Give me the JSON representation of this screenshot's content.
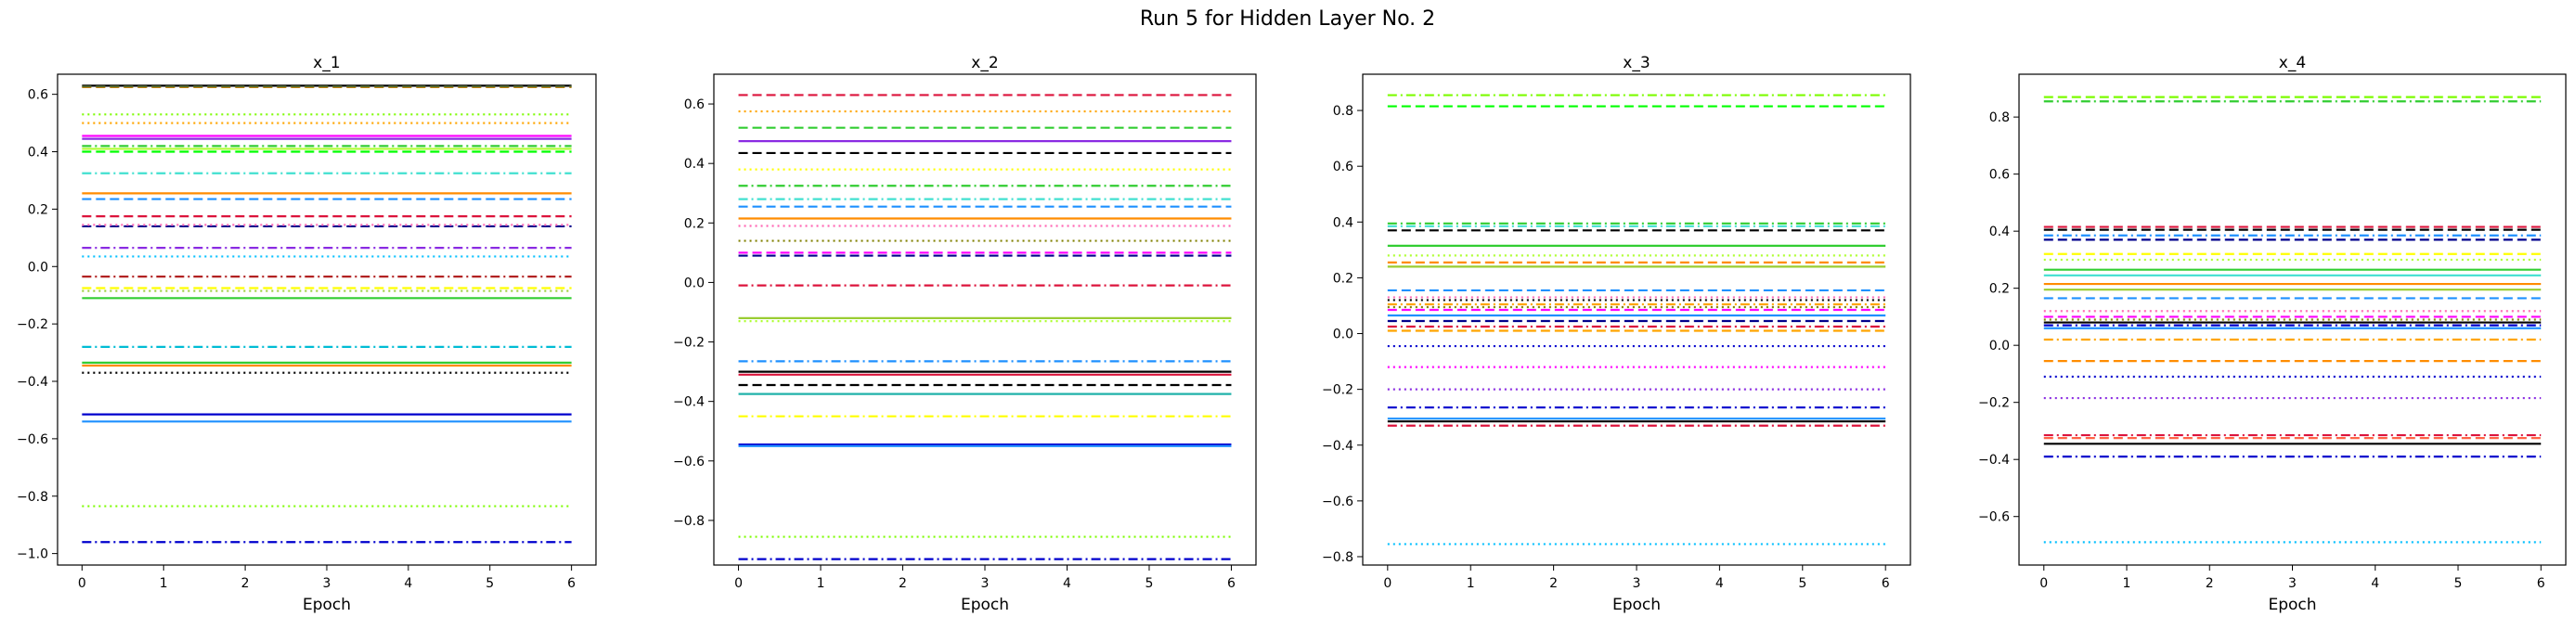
{
  "figure": {
    "suptitle": "Run 5 for Hidden Layer No. 2"
  },
  "chart_data": [
    {
      "type": "line",
      "title": "x_1",
      "xlabel": "Epoch",
      "ylabel": "",
      "xlim": [
        -0.3,
        6.3
      ],
      "ylim": [
        -1.04,
        0.67
      ],
      "xticks": [
        0,
        1,
        2,
        3,
        4,
        5,
        6
      ],
      "yticks": [
        -1.0,
        -0.8,
        -0.6,
        -0.4,
        -0.2,
        0.0,
        0.2,
        0.4,
        0.6
      ],
      "x": [
        0,
        1,
        2,
        3,
        4,
        5,
        6
      ],
      "grid": false,
      "lines": [
        {
          "value": 0.63,
          "color": "#000000",
          "style": "solid"
        },
        {
          "value": 0.625,
          "color": "#ff8c00",
          "style": "dashed"
        },
        {
          "value": 0.627,
          "color": "#556b2f",
          "style": "dashed"
        },
        {
          "value": 0.53,
          "color": "#7cfc00",
          "style": "dotted"
        },
        {
          "value": 0.5,
          "color": "#ffa500",
          "style": "dotted"
        },
        {
          "value": 0.455,
          "color": "#ff00ff",
          "style": "solid"
        },
        {
          "value": 0.445,
          "color": "#8a2be2",
          "style": "solid"
        },
        {
          "value": 0.42,
          "color": "#32cd32",
          "style": "dashdot"
        },
        {
          "value": 0.41,
          "color": "#adff2f",
          "style": "solid"
        },
        {
          "value": 0.4,
          "color": "#00ff00",
          "style": "dashed"
        },
        {
          "value": 0.325,
          "color": "#40e0d0",
          "style": "dashdot"
        },
        {
          "value": 0.255,
          "color": "#ff8c00",
          "style": "solid"
        },
        {
          "value": 0.235,
          "color": "#1e90ff",
          "style": "dashed"
        },
        {
          "value": 0.175,
          "color": "#dc143c",
          "style": "dashed"
        },
        {
          "value": 0.14,
          "color": "#00008b",
          "style": "dashed"
        },
        {
          "value": 0.145,
          "color": "#ff69b4",
          "style": "dotted"
        },
        {
          "value": 0.065,
          "color": "#8a2be2",
          "style": "dashdot"
        },
        {
          "value": 0.035,
          "color": "#00bfff",
          "style": "dotted"
        },
        {
          "value": -0.035,
          "color": "#b22222",
          "style": "dashdot"
        },
        {
          "value": -0.075,
          "color": "#ffff00",
          "style": "dashed"
        },
        {
          "value": -0.085,
          "color": "#9acd32",
          "style": "dotted"
        },
        {
          "value": -0.11,
          "color": "#32cd32",
          "style": "solid"
        },
        {
          "value": -0.28,
          "color": "#00bcd4",
          "style": "dashdot"
        },
        {
          "value": -0.335,
          "color": "#32cd32",
          "style": "solid"
        },
        {
          "value": -0.345,
          "color": "#ff8c00",
          "style": "solid"
        },
        {
          "value": -0.37,
          "color": "#000000",
          "style": "dotted"
        },
        {
          "value": -0.515,
          "color": "#0000cd",
          "style": "solid"
        },
        {
          "value": -0.54,
          "color": "#1e90ff",
          "style": "solid"
        },
        {
          "value": -0.835,
          "color": "#7cfc00",
          "style": "dotted"
        },
        {
          "value": -0.96,
          "color": "#0000cd",
          "style": "dashdot"
        }
      ]
    },
    {
      "type": "line",
      "title": "x_2",
      "xlabel": "Epoch",
      "ylabel": "",
      "xlim": [
        -0.3,
        6.3
      ],
      "ylim": [
        -0.95,
        0.7
      ],
      "xticks": [
        0,
        1,
        2,
        3,
        4,
        5,
        6
      ],
      "yticks": [
        -0.8,
        -0.6,
        -0.4,
        -0.2,
        0.0,
        0.2,
        0.4,
        0.6
      ],
      "x": [
        0,
        1,
        2,
        3,
        4,
        5,
        6
      ],
      "grid": false,
      "lines": [
        {
          "value": 0.63,
          "color": "#dc143c",
          "style": "dashed"
        },
        {
          "value": 0.575,
          "color": "#ffa500",
          "style": "dotted"
        },
        {
          "value": 0.52,
          "color": "#32cd32",
          "style": "dashed"
        },
        {
          "value": 0.475,
          "color": "#8a2be2",
          "style": "solid"
        },
        {
          "value": 0.435,
          "color": "#000000",
          "style": "dashed"
        },
        {
          "value": 0.38,
          "color": "#ffff00",
          "style": "dotted"
        },
        {
          "value": 0.325,
          "color": "#32cd32",
          "style": "dashdot"
        },
        {
          "value": 0.28,
          "color": "#40e0d0",
          "style": "dashdot"
        },
        {
          "value": 0.255,
          "color": "#1e90ff",
          "style": "dashed"
        },
        {
          "value": 0.215,
          "color": "#ff8c00",
          "style": "solid"
        },
        {
          "value": 0.19,
          "color": "#ff69b4",
          "style": "dotted"
        },
        {
          "value": 0.14,
          "color": "#808000",
          "style": "dotted"
        },
        {
          "value": 0.1,
          "color": "#ff00ff",
          "style": "dashed"
        },
        {
          "value": 0.09,
          "color": "#00008b",
          "style": "dashed"
        },
        {
          "value": -0.01,
          "color": "#dc143c",
          "style": "dashdot"
        },
        {
          "value": -0.12,
          "color": "#9acd32",
          "style": "solid"
        },
        {
          "value": -0.13,
          "color": "#adff2f",
          "style": "dotted"
        },
        {
          "value": -0.265,
          "color": "#1e90ff",
          "style": "dashdot"
        },
        {
          "value": -0.3,
          "color": "#000000",
          "style": "solid"
        },
        {
          "value": -0.31,
          "color": "#dc143c",
          "style": "solid"
        },
        {
          "value": -0.345,
          "color": "#000000",
          "style": "dashed"
        },
        {
          "value": -0.375,
          "color": "#20b2aa",
          "style": "solid"
        },
        {
          "value": -0.45,
          "color": "#ffff00",
          "style": "dashdot"
        },
        {
          "value": -0.545,
          "color": "#0000cd",
          "style": "solid"
        },
        {
          "value": -0.55,
          "color": "#1e90ff",
          "style": "solid"
        },
        {
          "value": -0.855,
          "color": "#7cfc00",
          "style": "dotted"
        },
        {
          "value": -0.93,
          "color": "#0000cd",
          "style": "dashdot"
        }
      ]
    },
    {
      "type": "line",
      "title": "x_3",
      "xlabel": "Epoch",
      "ylabel": "",
      "xlim": [
        -0.3,
        6.3
      ],
      "ylim": [
        -0.83,
        0.93
      ],
      "xticks": [
        0,
        1,
        2,
        3,
        4,
        5,
        6
      ],
      "yticks": [
        -0.8,
        -0.6,
        -0.4,
        -0.2,
        0.0,
        0.2,
        0.4,
        0.6,
        0.8
      ],
      "x": [
        0,
        1,
        2,
        3,
        4,
        5,
        6
      ],
      "grid": false,
      "lines": [
        {
          "value": 0.855,
          "color": "#7cfc00",
          "style": "dashdot"
        },
        {
          "value": 0.815,
          "color": "#00ff00",
          "style": "dashed"
        },
        {
          "value": 0.395,
          "color": "#32cd32",
          "style": "dashdot"
        },
        {
          "value": 0.385,
          "color": "#40e0d0",
          "style": "dashdot"
        },
        {
          "value": 0.37,
          "color": "#000000",
          "style": "dashed"
        },
        {
          "value": 0.315,
          "color": "#32cd32",
          "style": "solid"
        },
        {
          "value": 0.28,
          "color": "#adff2f",
          "style": "dotted"
        },
        {
          "value": 0.255,
          "color": "#ff8c00",
          "style": "dashed"
        },
        {
          "value": 0.24,
          "color": "#9acd32",
          "style": "solid"
        },
        {
          "value": 0.155,
          "color": "#1e90ff",
          "style": "dashed"
        },
        {
          "value": 0.13,
          "color": "#ff69b4",
          "style": "dotted"
        },
        {
          "value": 0.12,
          "color": "#000000",
          "style": "dotted"
        },
        {
          "value": 0.105,
          "color": "#ffa500",
          "style": "dashdot"
        },
        {
          "value": 0.095,
          "color": "#808000",
          "style": "dotted"
        },
        {
          "value": 0.085,
          "color": "#ff00ff",
          "style": "dashed"
        },
        {
          "value": 0.065,
          "color": "#1e90ff",
          "style": "solid"
        },
        {
          "value": 0.045,
          "color": "#00008b",
          "style": "dashed"
        },
        {
          "value": 0.025,
          "color": "#dc143c",
          "style": "dashdot"
        },
        {
          "value": 0.01,
          "color": "#ffa500",
          "style": "dashed"
        },
        {
          "value": -0.045,
          "color": "#0000cd",
          "style": "dotted"
        },
        {
          "value": -0.12,
          "color": "#ff00ff",
          "style": "dotted"
        },
        {
          "value": -0.2,
          "color": "#8a2be2",
          "style": "dotted"
        },
        {
          "value": -0.265,
          "color": "#0000cd",
          "style": "dashdot"
        },
        {
          "value": -0.305,
          "color": "#1e90ff",
          "style": "solid"
        },
        {
          "value": -0.315,
          "color": "#000000",
          "style": "solid"
        },
        {
          "value": -0.33,
          "color": "#dc143c",
          "style": "dashdot"
        },
        {
          "value": -0.755,
          "color": "#00bfff",
          "style": "dotted"
        }
      ]
    },
    {
      "type": "line",
      "title": "x_4",
      "xlabel": "Epoch",
      "ylabel": "",
      "xlim": [
        -0.3,
        6.3
      ],
      "ylim": [
        -0.77,
        0.95
      ],
      "xticks": [
        0,
        1,
        2,
        3,
        4,
        5,
        6
      ],
      "yticks": [
        -0.6,
        -0.4,
        -0.2,
        0.0,
        0.2,
        0.4,
        0.6,
        0.8
      ],
      "x": [
        0,
        1,
        2,
        3,
        4,
        5,
        6
      ],
      "grid": false,
      "lines": [
        {
          "value": 0.87,
          "color": "#7cfc00",
          "style": "dashed"
        },
        {
          "value": 0.855,
          "color": "#32cd32",
          "style": "dashdot"
        },
        {
          "value": 0.415,
          "color": "#dc143c",
          "style": "dashed"
        },
        {
          "value": 0.405,
          "color": "#000000",
          "style": "dashed"
        },
        {
          "value": 0.385,
          "color": "#1e90ff",
          "style": "dashdot"
        },
        {
          "value": 0.37,
          "color": "#00008b",
          "style": "dashed"
        },
        {
          "value": 0.32,
          "color": "#ffff00",
          "style": "dashed"
        },
        {
          "value": 0.3,
          "color": "#adff2f",
          "style": "dotted"
        },
        {
          "value": 0.265,
          "color": "#32cd32",
          "style": "solid"
        },
        {
          "value": 0.245,
          "color": "#40e0d0",
          "style": "solid"
        },
        {
          "value": 0.215,
          "color": "#ff8c00",
          "style": "solid"
        },
        {
          "value": 0.195,
          "color": "#9acd32",
          "style": "solid"
        },
        {
          "value": 0.165,
          "color": "#1e90ff",
          "style": "dashed"
        },
        {
          "value": 0.12,
          "color": "#ff69b4",
          "style": "dotted"
        },
        {
          "value": 0.1,
          "color": "#ff00ff",
          "style": "dashed"
        },
        {
          "value": 0.09,
          "color": "#808000",
          "style": "dotted"
        },
        {
          "value": 0.08,
          "color": "#000000",
          "style": "solid"
        },
        {
          "value": 0.07,
          "color": "#0000cd",
          "style": "dashdot"
        },
        {
          "value": 0.06,
          "color": "#1e90ff",
          "style": "solid"
        },
        {
          "value": 0.02,
          "color": "#ffa500",
          "style": "dashdot"
        },
        {
          "value": -0.055,
          "color": "#ff8c00",
          "style": "dashed"
        },
        {
          "value": -0.11,
          "color": "#0000cd",
          "style": "dotted"
        },
        {
          "value": -0.185,
          "color": "#8a2be2",
          "style": "dotted"
        },
        {
          "value": -0.315,
          "color": "#dc143c",
          "style": "dashdot"
        },
        {
          "value": -0.325,
          "color": "#ff6347",
          "style": "dashed"
        },
        {
          "value": -0.345,
          "color": "#000000",
          "style": "solid"
        },
        {
          "value": -0.39,
          "color": "#0000cd",
          "style": "dashdot"
        },
        {
          "value": -0.69,
          "color": "#00bfff",
          "style": "dotted"
        }
      ]
    }
  ]
}
